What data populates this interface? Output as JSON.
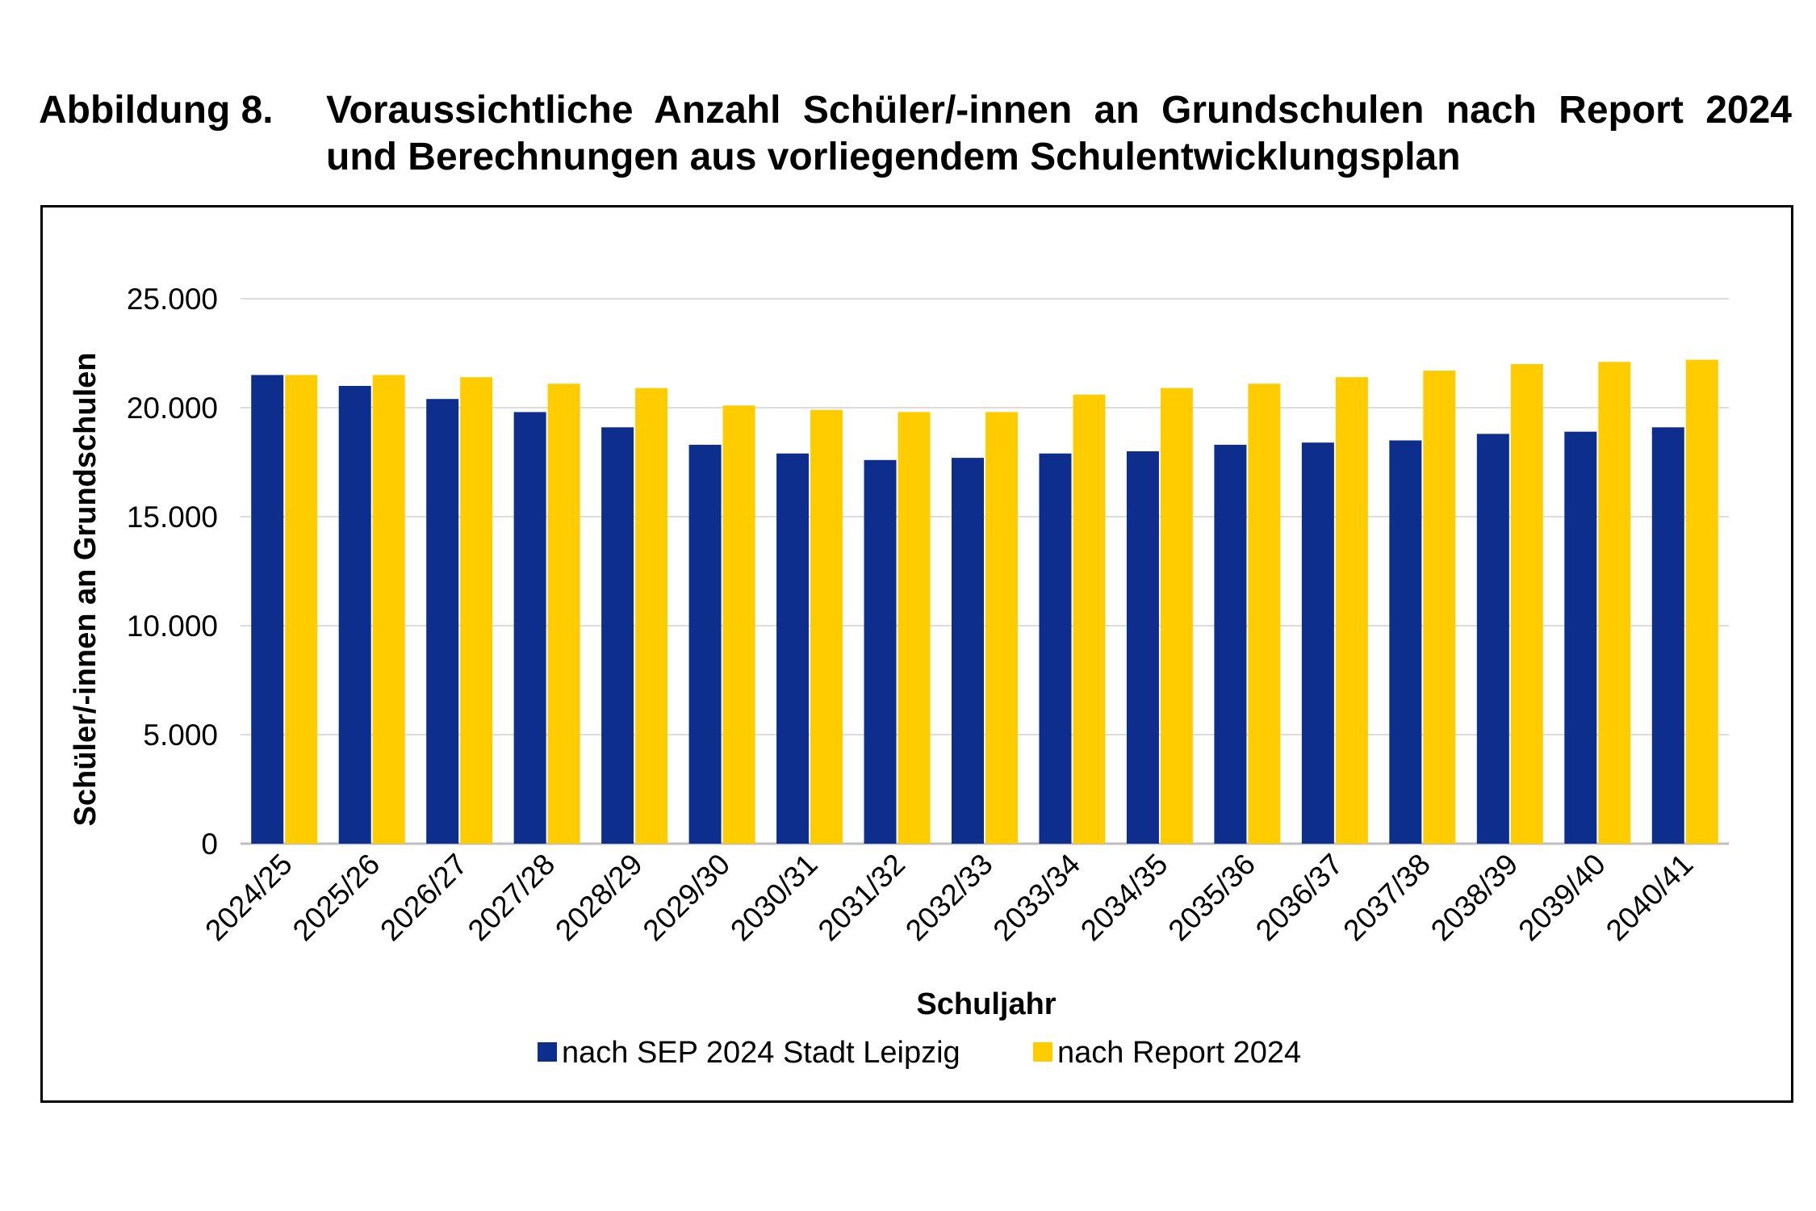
{
  "caption": {
    "label": "Abbildung 8.",
    "text": "Voraussichtliche Anzahl Schüler/-innen an Grundschulen nach Report 2024 und Berechnungen aus vorliegendem Schulentwicklungsplan"
  },
  "chart_data": {
    "type": "bar",
    "title": "",
    "xlabel": "Schuljahr",
    "ylabel": "Schüler/-innen an Grundschulen",
    "ylim": [
      0,
      25000
    ],
    "yticks": [
      0,
      5000,
      10000,
      15000,
      20000,
      25000
    ],
    "ytick_labels": [
      "0",
      "5.000",
      "10.000",
      "15.000",
      "20.000",
      "25.000"
    ],
    "grid": "horizontal",
    "legend_position": "bottom",
    "categories": [
      "2024/25",
      "2025/26",
      "2026/27",
      "2027/28",
      "2028/29",
      "2029/30",
      "2030/31",
      "2031/32",
      "2032/33",
      "2033/34",
      "2034/35",
      "2035/36",
      "2036/37",
      "2037/38",
      "2038/39",
      "2039/40",
      "2040/41"
    ],
    "series": [
      {
        "name": "nach SEP 2024 Stadt Leipzig",
        "color": "#0e2e8e",
        "values": [
          21500,
          21000,
          20400,
          19800,
          19100,
          18300,
          17900,
          17600,
          17700,
          17900,
          18000,
          18300,
          18400,
          18500,
          18800,
          18900,
          19100
        ]
      },
      {
        "name": "nach Report 2024",
        "color": "#ffcc00",
        "values": [
          21500,
          21500,
          21400,
          21100,
          20900,
          20100,
          19900,
          19800,
          19800,
          20600,
          20900,
          21100,
          21400,
          21700,
          22000,
          22100,
          22200
        ]
      }
    ]
  }
}
